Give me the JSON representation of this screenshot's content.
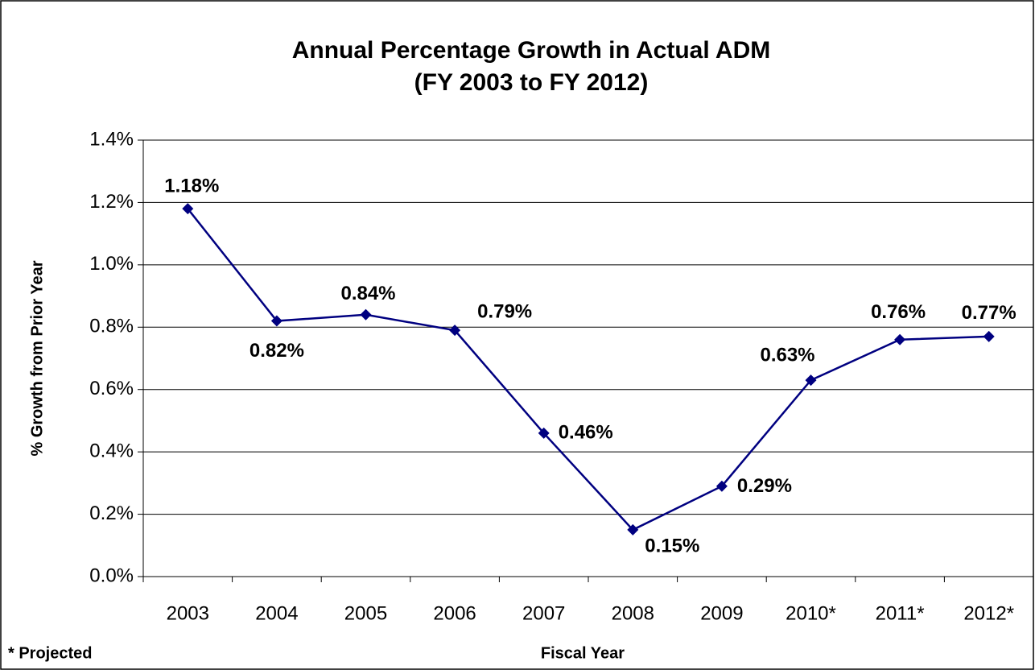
{
  "chart_data": {
    "type": "line",
    "title": "Annual Percentage Growth in Actual ADM",
    "subtitle": "(FY 2003 to FY 2012)",
    "x_label": "Fiscal Year",
    "y_label": "% Growth from Prior Year",
    "annotations": [
      "* Projected"
    ],
    "categories": [
      "2003",
      "2004",
      "2005",
      "2006",
      "2007",
      "2008",
      "2009",
      "2010*",
      "2011*",
      "2012*"
    ],
    "series": [
      {
        "name": "Growth",
        "color": "#000080",
        "values": [
          1.18,
          0.82,
          0.84,
          0.79,
          0.46,
          0.15,
          0.29,
          0.63,
          0.76,
          0.77
        ],
        "value_labels": [
          "1.18%",
          "0.82%",
          "0.84%",
          "0.79%",
          "0.46%",
          "0.15%",
          "0.29%",
          "0.63%",
          "0.76%",
          "0.77%"
        ]
      }
    ],
    "ylim": [
      0,
      1.4
    ],
    "yticks": [
      {
        "value": 0,
        "label": "0.0%"
      },
      {
        "value": 0.2,
        "label": "0.2%"
      },
      {
        "value": 0.4,
        "label": "0.4%"
      },
      {
        "value": 0.6,
        "label": "0.6%"
      },
      {
        "value": 0.8,
        "label": "0.8%"
      },
      {
        "value": 1.0,
        "label": "1.0%"
      },
      {
        "value": 1.2,
        "label": "1.2%"
      },
      {
        "value": 1.4,
        "label": "1.4%"
      }
    ],
    "grid": true
  }
}
